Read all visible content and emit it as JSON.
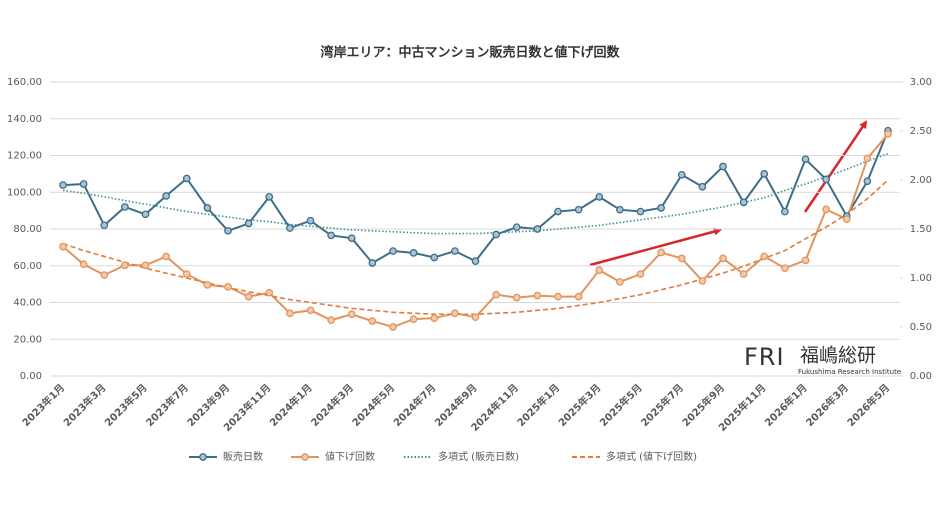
{
  "chart_data": {
    "type": "line",
    "title": "湾岸エリア：中古マンション販売日数と値下げ回数",
    "categories": [
      "2023年1月",
      null,
      "2023年3月",
      null,
      "2023年5月",
      null,
      "2023年7月",
      null,
      "2023年9月",
      null,
      "2023年11月",
      null,
      "2024年1月",
      null,
      "2024年3月",
      null,
      "2024年5月",
      null,
      "2024年7月",
      null,
      "2024年9月",
      null,
      "2024年11月",
      null,
      "2025年1月",
      null,
      "2025年3月",
      null,
      "2025年5月",
      null,
      "2025年7月",
      null,
      "2025年9月",
      null,
      "2025年11月",
      null,
      "2026年1月",
      null,
      "2026年3月",
      null,
      "2026年5月"
    ],
    "series": [
      {
        "name": "販売日数",
        "color": "#3e6d87",
        "style": "solid",
        "marker": true,
        "values": [
          103.9,
          104.5,
          82,
          92,
          88,
          98,
          107.5,
          91.5,
          79,
          83,
          97.5,
          80.5,
          84.5,
          76.5,
          75,
          61.5,
          68,
          67,
          64.5,
          68,
          62.5,
          77,
          81,
          80,
          89.5,
          90.5,
          97.5,
          90.5,
          89.5,
          91.5,
          109.5,
          103,
          114,
          94.5,
          110,
          89.5,
          118,
          107,
          87,
          106,
          133.5
        ]
      },
      {
        "name": "値下げ回数",
        "color": "#e2945f",
        "style": "solid",
        "marker": true,
        "axis": "y2",
        "values": [
          1.32,
          1.14,
          1.03,
          1.13,
          1.13,
          1.22,
          1.04,
          0.93,
          0.91,
          0.81,
          0.85,
          0.64,
          0.67,
          0.57,
          0.63,
          0.56,
          0.5,
          0.58,
          0.59,
          0.64,
          0.6,
          0.83,
          0.8,
          0.82,
          0.81,
          0.81,
          1.08,
          0.96,
          1.04,
          1.26,
          1.2,
          0.97,
          1.2,
          1.04,
          1.22,
          1.1,
          1.18,
          1.7,
          1.6,
          2.22,
          2.47
        ]
      },
      {
        "name": "多項式 (販売日数)",
        "color": "#3e8f8f",
        "style": "dotted",
        "marker": false,
        "values": [
          101,
          99.5,
          97.5,
          95.5,
          93.5,
          91.5,
          89.5,
          88,
          86.5,
          85,
          84,
          82.5,
          81.5,
          80.5,
          79.5,
          79,
          78.5,
          78,
          77.5,
          77.5,
          77.5,
          78,
          78.5,
          79,
          80,
          81,
          82,
          83.5,
          85,
          86.5,
          88,
          90,
          92,
          94.5,
          97,
          101,
          104.5,
          108.5,
          112.5,
          117,
          121
        ]
      },
      {
        "name": "多項式 (値下げ回数)",
        "color": "#e07b39",
        "style": "dashed",
        "marker": false,
        "axis": "y2",
        "values": [
          1.35,
          1.28,
          1.22,
          1.16,
          1.1,
          1.05,
          1.0,
          0.95,
          0.9,
          0.86,
          0.82,
          0.78,
          0.75,
          0.72,
          0.69,
          0.67,
          0.65,
          0.64,
          0.63,
          0.63,
          0.63,
          0.64,
          0.65,
          0.67,
          0.69,
          0.72,
          0.75,
          0.79,
          0.83,
          0.88,
          0.93,
          0.99,
          1.05,
          1.12,
          1.2,
          1.28,
          1.4,
          1.52,
          1.65,
          1.81,
          2.0
        ]
      }
    ],
    "ylim": [
      0,
      160
    ],
    "yticks": [
      {
        "value": 0,
        "label": "0.00"
      },
      {
        "value": 20,
        "label": "20.00"
      },
      {
        "value": 40,
        "label": "40.00"
      },
      {
        "value": 60,
        "label": "60.00"
      },
      {
        "value": 80,
        "label": "80.00"
      },
      {
        "value": 100,
        "label": "100.00"
      },
      {
        "value": 120,
        "label": "120.00"
      },
      {
        "value": 140,
        "label": "140.00"
      },
      {
        "value": 160,
        "label": "160.00"
      }
    ],
    "y2lim": [
      0,
      3
    ],
    "y2ticks": [
      {
        "value": 0,
        "label": "0.00"
      },
      {
        "value": 0.5,
        "label": "0.50"
      },
      {
        "value": 1,
        "label": "1.00"
      },
      {
        "value": 1.5,
        "label": "1.50"
      },
      {
        "value": 2,
        "label": "2.00"
      },
      {
        "value": 2.5,
        "label": "2.50"
      },
      {
        "value": 3,
        "label": "3.00"
      }
    ],
    "grid": true,
    "legend": "bottom",
    "logo": {
      "mark": "FRI",
      "name": "福嶋総研",
      "subtitle": "Fukushima Research Institute"
    }
  }
}
